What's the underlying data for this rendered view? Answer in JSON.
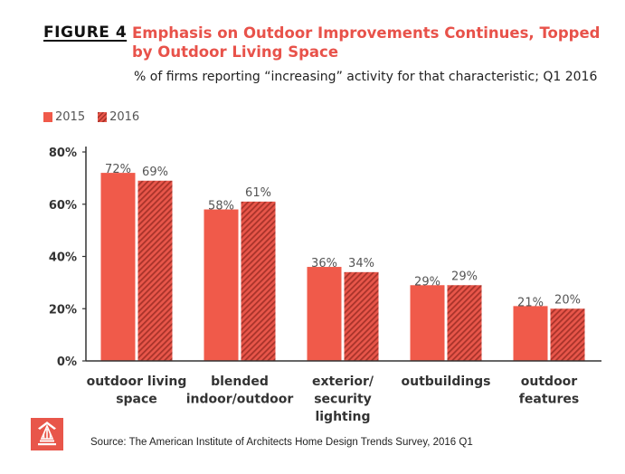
{
  "figure": {
    "label": "FIGURE 4",
    "title": "Emphasis on Outdoor Improvements Continues, Topped by Outdoor Living Space",
    "subtitle": "% of firms reporting “increasing” activity for that characteristic; Q1 2016"
  },
  "legend": {
    "placement": "top-left",
    "items": [
      "2015",
      "2016"
    ]
  },
  "colors": {
    "title": "#e8524a",
    "series_2015": "#f05a4a",
    "series_2016_hatch_dark": "#a8332a",
    "series_2016_hatch_light": "#e8564a",
    "logo": "#e8564a"
  },
  "logo_icon": "aia-logo-icon",
  "chart_data": {
    "type": "bar",
    "title": "Emphasis on Outdoor Improvements Continues, Topped by Outdoor Living Space",
    "subtitle": "% of firms reporting “increasing” activity for that characteristic; Q1 2016",
    "categories": [
      [
        "outdoor living",
        "space"
      ],
      [
        "blended",
        "indoor/outdoor"
      ],
      [
        "exterior/",
        "security",
        "lighting"
      ],
      [
        "outbuildings"
      ],
      [
        "outdoor",
        "features"
      ]
    ],
    "series": [
      {
        "name": "2015",
        "values": [
          72,
          58,
          36,
          29,
          21
        ],
        "labels": [
          "72%",
          "58%",
          "36%",
          "29%",
          "21%"
        ]
      },
      {
        "name": "2016",
        "values": [
          69,
          61,
          34,
          29,
          20
        ],
        "labels": [
          "69%",
          "61%",
          "34%",
          "29%",
          "20%"
        ]
      }
    ],
    "yticks": [
      0,
      20,
      40,
      60,
      80
    ],
    "ytick_labels": [
      "0%",
      "20%",
      "40%",
      "60%",
      "80%"
    ],
    "ylim": [
      0,
      80
    ],
    "grid": false,
    "legend": "top-left"
  },
  "source": "Source: The American Institute of Architects Home Design Trends Survey, 2016 Q1"
}
